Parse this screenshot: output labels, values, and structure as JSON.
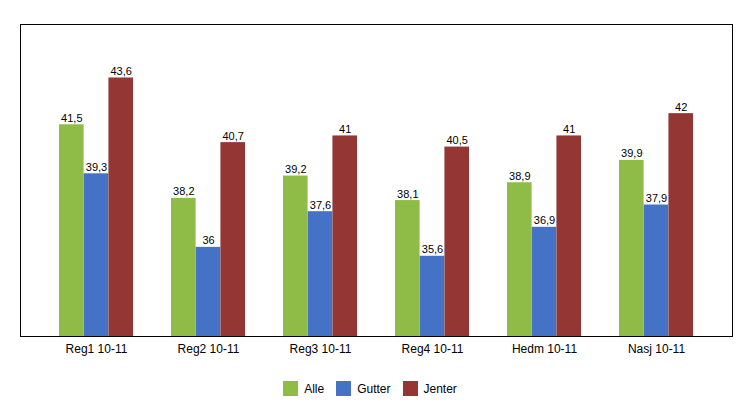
{
  "chart_data": {
    "type": "bar",
    "categories": [
      "Reg1 10-11",
      "Reg2 10-11",
      "Reg3 10-11",
      "Reg4 10-11",
      "Hedm 10-11",
      "Nasj 10-11"
    ],
    "series": [
      {
        "name": "Alle",
        "color": "#8fbc47",
        "values": [
          41.5,
          38.2,
          39.2,
          38.1,
          38.9,
          39.9
        ],
        "value_labels": [
          "41,5",
          "38,2",
          "39,2",
          "38,1",
          "38,9",
          "39,9"
        ]
      },
      {
        "name": "Gutter",
        "color": "#4472c4",
        "values": [
          39.3,
          36.0,
          37.6,
          35.6,
          36.9,
          37.9
        ],
        "value_labels": [
          "39,3",
          "36",
          "37,6",
          "35,6",
          "36,9",
          "37,9"
        ]
      },
      {
        "name": "Jenter",
        "color": "#943634",
        "values": [
          43.6,
          40.7,
          41.0,
          40.5,
          41.0,
          42.0
        ],
        "value_labels": [
          "43,6",
          "40,7",
          "41",
          "40,5",
          "41",
          "42"
        ]
      }
    ],
    "ylim": [
      32,
      46
    ],
    "yticks": [],
    "tick_labels": "x",
    "grid": false,
    "data_labels": true,
    "legend": "bottom"
  }
}
